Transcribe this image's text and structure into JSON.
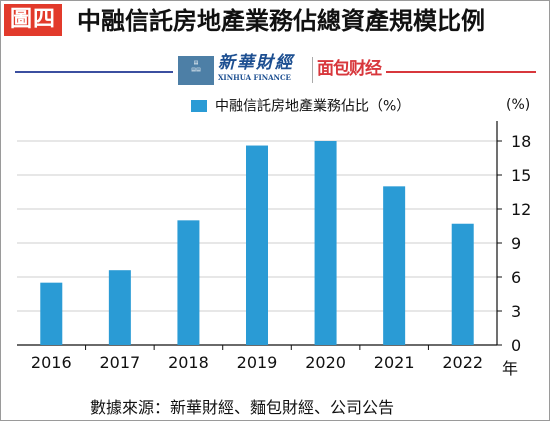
{
  "badge": "圖四",
  "title": "中融信託房地產業務佔總資產規模比例",
  "logos": {
    "xinhua_cn": "新華財經",
    "xinhua_en": "XINHUA FINANCE",
    "miaobao": "面包财经"
  },
  "footer": "數據來源：新華財經、麵包財經、公司公告",
  "colors": {
    "bar": "#2a9bd5",
    "badge": "#e23a2b"
  },
  "chart_data": {
    "type": "bar",
    "categories": [
      "2016",
      "2017",
      "2018",
      "2019",
      "2020",
      "2021",
      "2022"
    ],
    "series": [
      {
        "name": "中融信託房地產業務佔比（%）",
        "values": [
          5.5,
          6.6,
          11.0,
          17.6,
          18.0,
          14.0,
          10.7
        ]
      }
    ],
    "y_unit": "(%)",
    "x_unit": "年",
    "ylim": [
      0,
      18
    ],
    "yticks": [
      0,
      3,
      6,
      9,
      12,
      15,
      18
    ],
    "y_axis_side": "right",
    "grid": true,
    "legend": "top"
  }
}
